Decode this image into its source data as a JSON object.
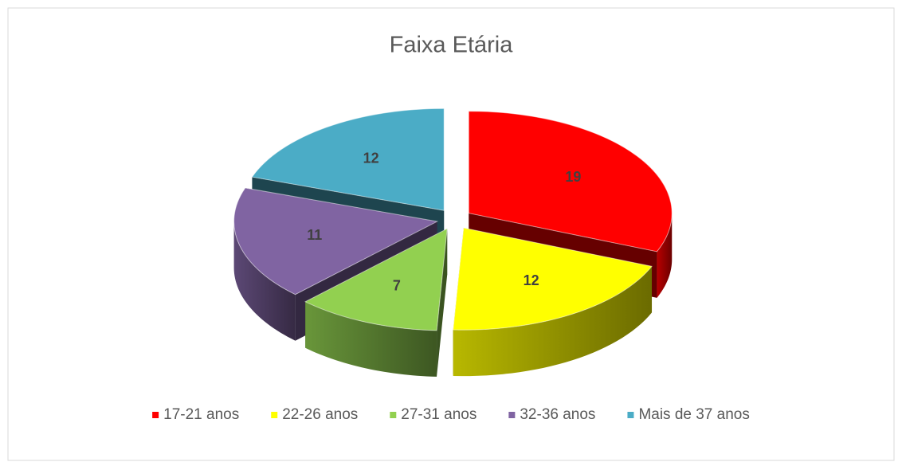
{
  "chart_data": {
    "type": "pie3d",
    "title": "Faixa Etária",
    "categories": [
      "17-21 anos",
      "22-26 anos",
      "27-31 anos",
      "32-36 anos",
      "Mais de 37 anos"
    ],
    "values": [
      19,
      12,
      7,
      11,
      12
    ],
    "colors": [
      "#ff0000",
      "#ffff00",
      "#92d050",
      "#8064a2",
      "#4bacc6"
    ],
    "legend": "bottom"
  }
}
